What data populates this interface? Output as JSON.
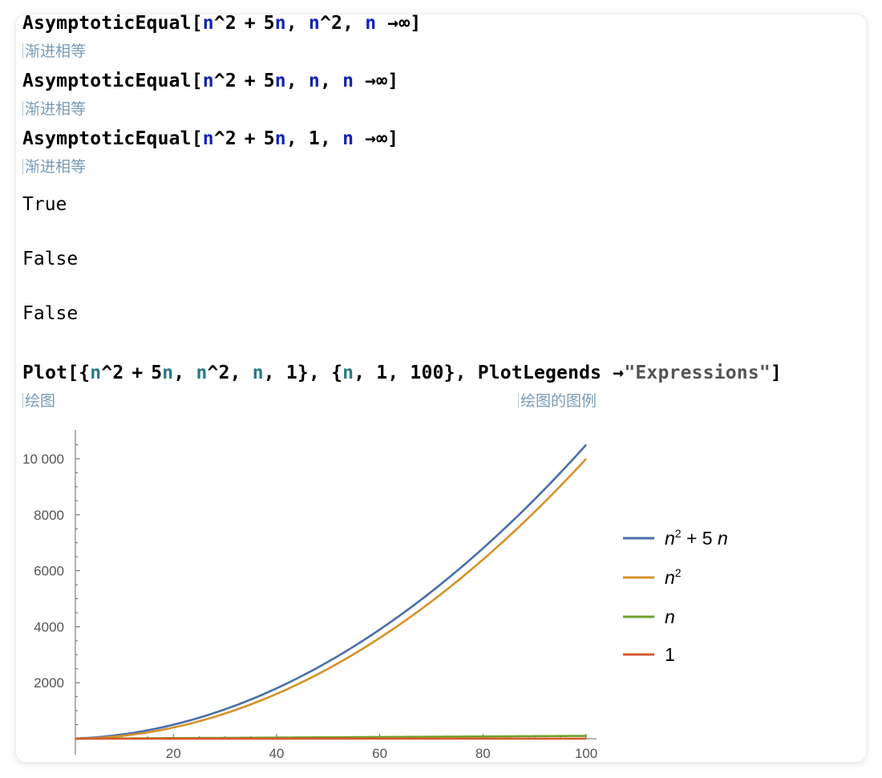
{
  "inputs": [
    {
      "code": "AsymptoticEqual[n^2+5n, n^2, n→∞]",
      "hint": "渐进相等"
    },
    {
      "code": "AsymptoticEqual[n^2+5n, n, n→∞]",
      "hint": "渐进相等"
    },
    {
      "code": "AsymptoticEqual[n^2+5n, 1, n→∞]",
      "hint": "渐进相等"
    }
  ],
  "outputs": [
    "True",
    "False",
    "False"
  ],
  "plot_input": {
    "hint_plot": "绘图",
    "hint_legends": "绘图的图例",
    "legend_string": "\"Expressions\""
  },
  "colors": {
    "n2_plus_5n": "#4a6fa8",
    "n2": "#d6922a",
    "n": "#6fa12a",
    "one": "#d65a2e",
    "variable_blue": "#1224b8",
    "variable_teal": "#2a7a87",
    "hint": "#7a9bb6"
  },
  "chart_data": {
    "type": "line",
    "x": {
      "min": 1,
      "max": 100
    },
    "xticks": [
      20,
      40,
      60,
      80,
      100
    ],
    "yticks": [
      2000,
      4000,
      6000,
      8000,
      10000
    ],
    "ytick_labels": [
      "2000",
      "4000",
      "6000",
      "8000",
      "10 000"
    ],
    "xticks_labels": [
      "20",
      "40",
      "60",
      "80",
      "100"
    ],
    "ylim": [
      0,
      11000
    ],
    "legend_position": "right",
    "series": [
      {
        "name": "n^2 + 5n",
        "formula": "n^2+5n"
      },
      {
        "name": "n^2",
        "formula": "n^2"
      },
      {
        "name": "n",
        "formula": "n"
      },
      {
        "name": "1",
        "formula": "1"
      }
    ]
  }
}
